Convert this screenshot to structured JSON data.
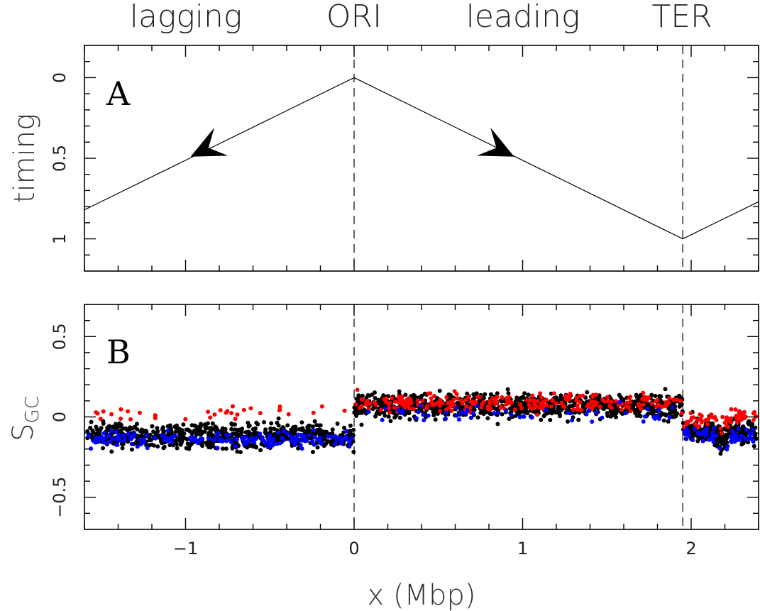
{
  "top_labels": {
    "lagging": "lagging",
    "ori": "ORI",
    "leading": "leading",
    "ter": "TER"
  },
  "chart_data": [
    {
      "panel": "A",
      "type": "line",
      "ylabel": "timing",
      "xlim": [
        -1.6,
        2.4
      ],
      "ylim": [
        -0.2,
        1.2
      ],
      "y_inverted": true,
      "x_ticks": [
        -1,
        0,
        1,
        2
      ],
      "y_ticks": [
        {
          "value": 0,
          "label": "0"
        },
        {
          "value": 0.5,
          "label": "0.5"
        },
        {
          "value": 1,
          "label": "1"
        }
      ],
      "x": [
        -1.6,
        0,
        1.95,
        2.4
      ],
      "y": [
        0.82,
        0,
        1.0,
        0.77
      ],
      "vlines": [
        0,
        1.95
      ],
      "arrows": [
        {
          "x": -0.97,
          "y": 0.49,
          "direction": "left"
        },
        {
          "x": 0.95,
          "y": 0.49,
          "direction": "right"
        }
      ]
    },
    {
      "panel": "B",
      "type": "scatter",
      "ylabel": "S",
      "ylabel_sub": "GC",
      "xlabel": "x (Mbp)",
      "xlim": [
        -1.6,
        2.4
      ],
      "ylim": [
        -0.7,
        0.7
      ],
      "x_ticks": [
        {
          "value": -1,
          "label": "−1"
        },
        {
          "value": 0,
          "label": "0"
        },
        {
          "value": 1,
          "label": "1"
        },
        {
          "value": 2,
          "label": "2"
        }
      ],
      "y_ticks": [
        {
          "value": 0.5,
          "label": "0.5"
        },
        {
          "value": 0,
          "label": "0"
        },
        {
          "value": -0.5,
          "label": "−0.5"
        }
      ],
      "vlines": [
        0,
        1.95
      ],
      "series": [
        {
          "color": "#000000",
          "mean_segments": [
            [
              -1.6,
              -0.12
            ],
            [
              -0.001,
              -0.12
            ],
            [
              0,
              0.07
            ],
            [
              1.95,
              0.07
            ],
            [
              1.951,
              -0.08
            ],
            [
              2.4,
              -0.1
            ]
          ],
          "spread": 0.075,
          "count": 1900
        },
        {
          "color": "#ff0000",
          "mean_segments": [
            [
              0,
              0.09
            ],
            [
              1.95,
              0.09
            ],
            [
              1.951,
              -0.03
            ],
            [
              2.4,
              0.02
            ]
          ],
          "spread": 0.055,
          "count": 520,
          "sparse_left": true
        },
        {
          "color": "#0000ff",
          "mean_segments": [
            [
              -1.6,
              -0.14
            ],
            [
              -0.001,
              -0.14
            ],
            [
              0,
              0.02
            ],
            [
              1.95,
              0.02
            ],
            [
              1.951,
              -0.1
            ],
            [
              2.4,
              -0.13
            ]
          ],
          "spread": 0.05,
          "count": 440,
          "sparse_right_of_ori": true
        }
      ]
    }
  ],
  "colors": {
    "axis": "#000000",
    "line": "#000000"
  }
}
